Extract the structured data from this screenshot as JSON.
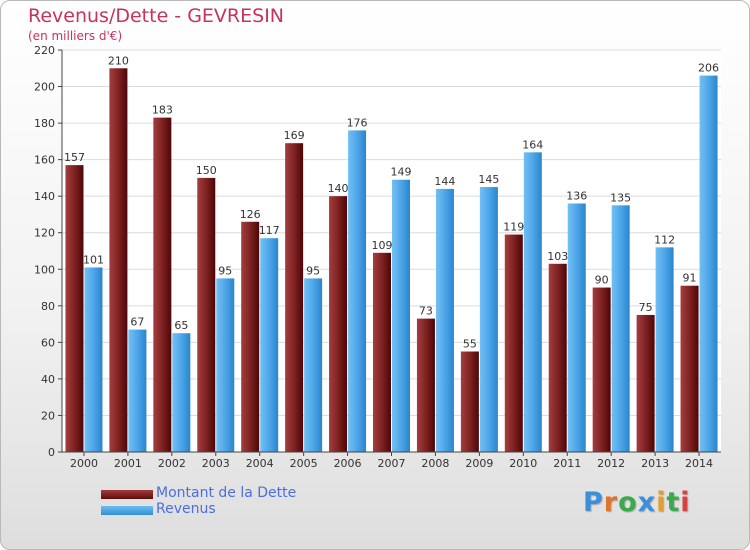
{
  "chart_data": {
    "type": "bar",
    "title": "Revenus/Dette - GEVRESIN",
    "subtitle": "(en milliers d'€)",
    "categories": [
      "2000",
      "2001",
      "2002",
      "2003",
      "2004",
      "2005",
      "2006",
      "2007",
      "2008",
      "2009",
      "2010",
      "2011",
      "2012",
      "2013",
      "2014"
    ],
    "series": [
      {
        "name": "Montant de la Dette",
        "values": [
          157,
          210,
          183,
          150,
          126,
          169,
          140,
          109,
          73,
          55,
          119,
          103,
          90,
          75,
          91
        ]
      },
      {
        "name": "Revenus",
        "values": [
          101,
          67,
          65,
          95,
          117,
          95,
          176,
          149,
          144,
          145,
          164,
          136,
          135,
          112,
          206
        ]
      }
    ],
    "ylim": [
      0,
      220
    ],
    "yticks": [
      0,
      20,
      40,
      60,
      80,
      100,
      120,
      140,
      160,
      180,
      200,
      220
    ],
    "grid": true,
    "legend_position": "bottom-left",
    "colors": {
      "dette": "#7a1f1f",
      "revenus": "#4aa3e6",
      "title": "#c8325f",
      "legend_text": "#4a6fe0"
    }
  },
  "branding": {
    "logo_letters": [
      "P",
      "r",
      "o",
      "x",
      "i",
      "t",
      "i"
    ],
    "logo_colors": [
      "#3a8fd8",
      "#e0742a",
      "#3aaa4a",
      "#3a8fd8",
      "#e0a030",
      "#3aaa4a",
      "#d94040"
    ]
  }
}
